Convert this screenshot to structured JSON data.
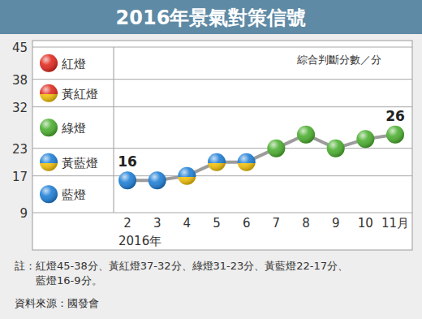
{
  "chart_data": {
    "type": "line",
    "title": "2016年景氣對策信號",
    "subtitle": "綜合判斷分數／分",
    "x_label": "2016年",
    "categories": [
      "2",
      "3",
      "4",
      "5",
      "6",
      "7",
      "8",
      "9",
      "10",
      "11月"
    ],
    "values": [
      16,
      16,
      17,
      20,
      20,
      23,
      26,
      23,
      25,
      26
    ],
    "ylim": [
      9,
      45
    ],
    "yticks": [
      9,
      17,
      23,
      32,
      38,
      45
    ],
    "grid": true,
    "band_labels": [
      "藍燈",
      "黃藍燈",
      "綠燈",
      "黃紅燈",
      "紅燈"
    ],
    "annotations": [
      {
        "index": 0,
        "text": "16"
      },
      {
        "index": 9,
        "text": "26"
      }
    ],
    "note": "註：紅燈45-38分、黃紅燈37-32分、綠燈31-23分、黃藍燈22-17分、藍燈16-9分。",
    "source": "資料來源：國發會"
  }
}
